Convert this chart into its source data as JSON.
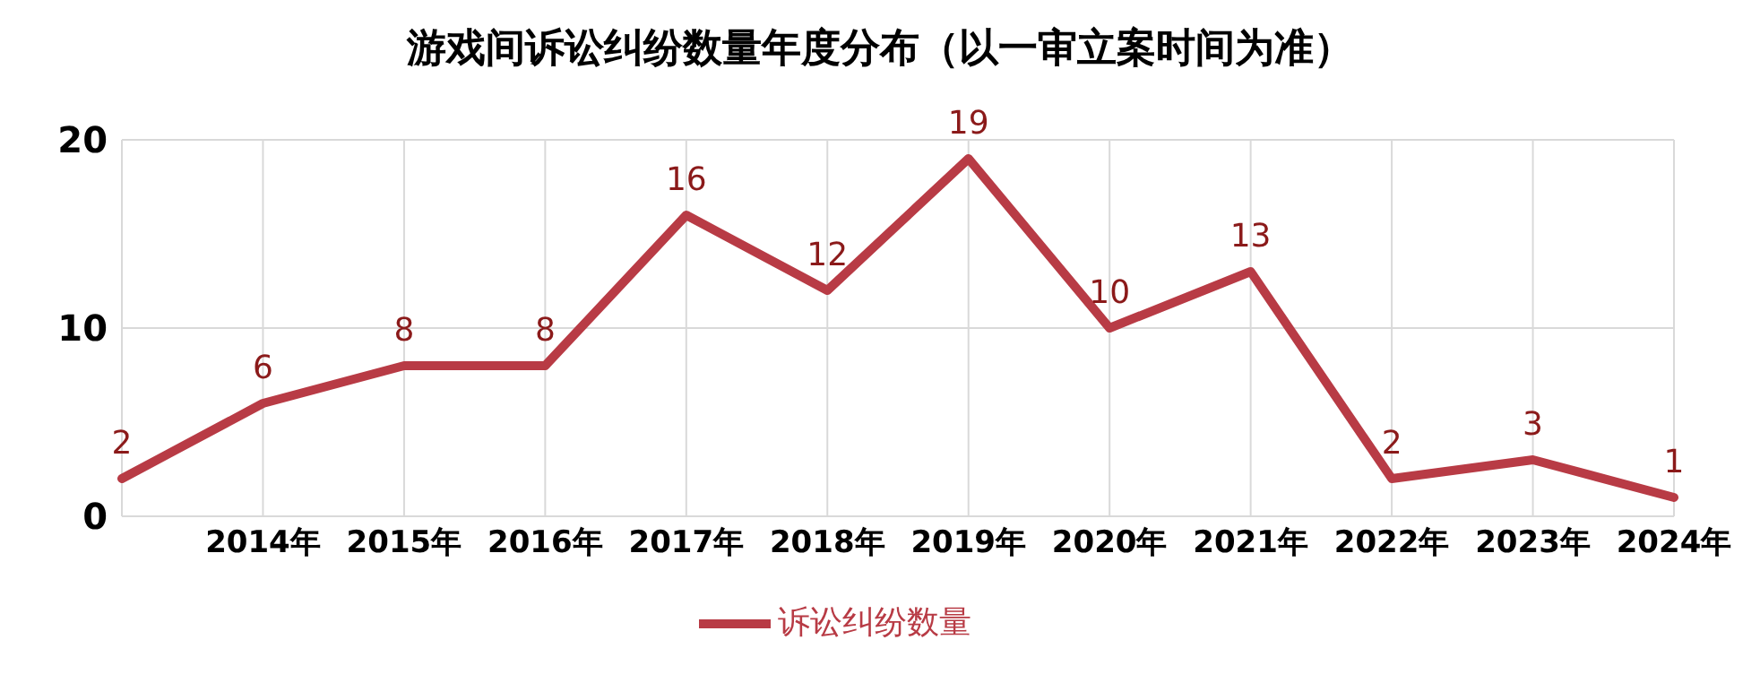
{
  "chart_data": {
    "type": "line",
    "title": "游戏间诉讼纠纷数量年度分布（以一审立案时间为准）",
    "categories": [
      null,
      "2014年",
      "2015年",
      "2016年",
      "2017年",
      "2018年",
      "2019年",
      "2020年",
      "2021年",
      "2022年",
      "2023年",
      "2024年"
    ],
    "series": [
      {
        "name": "诉讼纠纷数量",
        "color": "#b83b45",
        "values": [
          2,
          6,
          8,
          8,
          16,
          12,
          19,
          10,
          13,
          2,
          3,
          1
        ]
      }
    ],
    "ylim": [
      0,
      20
    ],
    "yticks": [
      0,
      10,
      20
    ],
    "grid": true,
    "legend": "bottom",
    "data_labels": true,
    "marker": "none",
    "line_style": "solid"
  }
}
